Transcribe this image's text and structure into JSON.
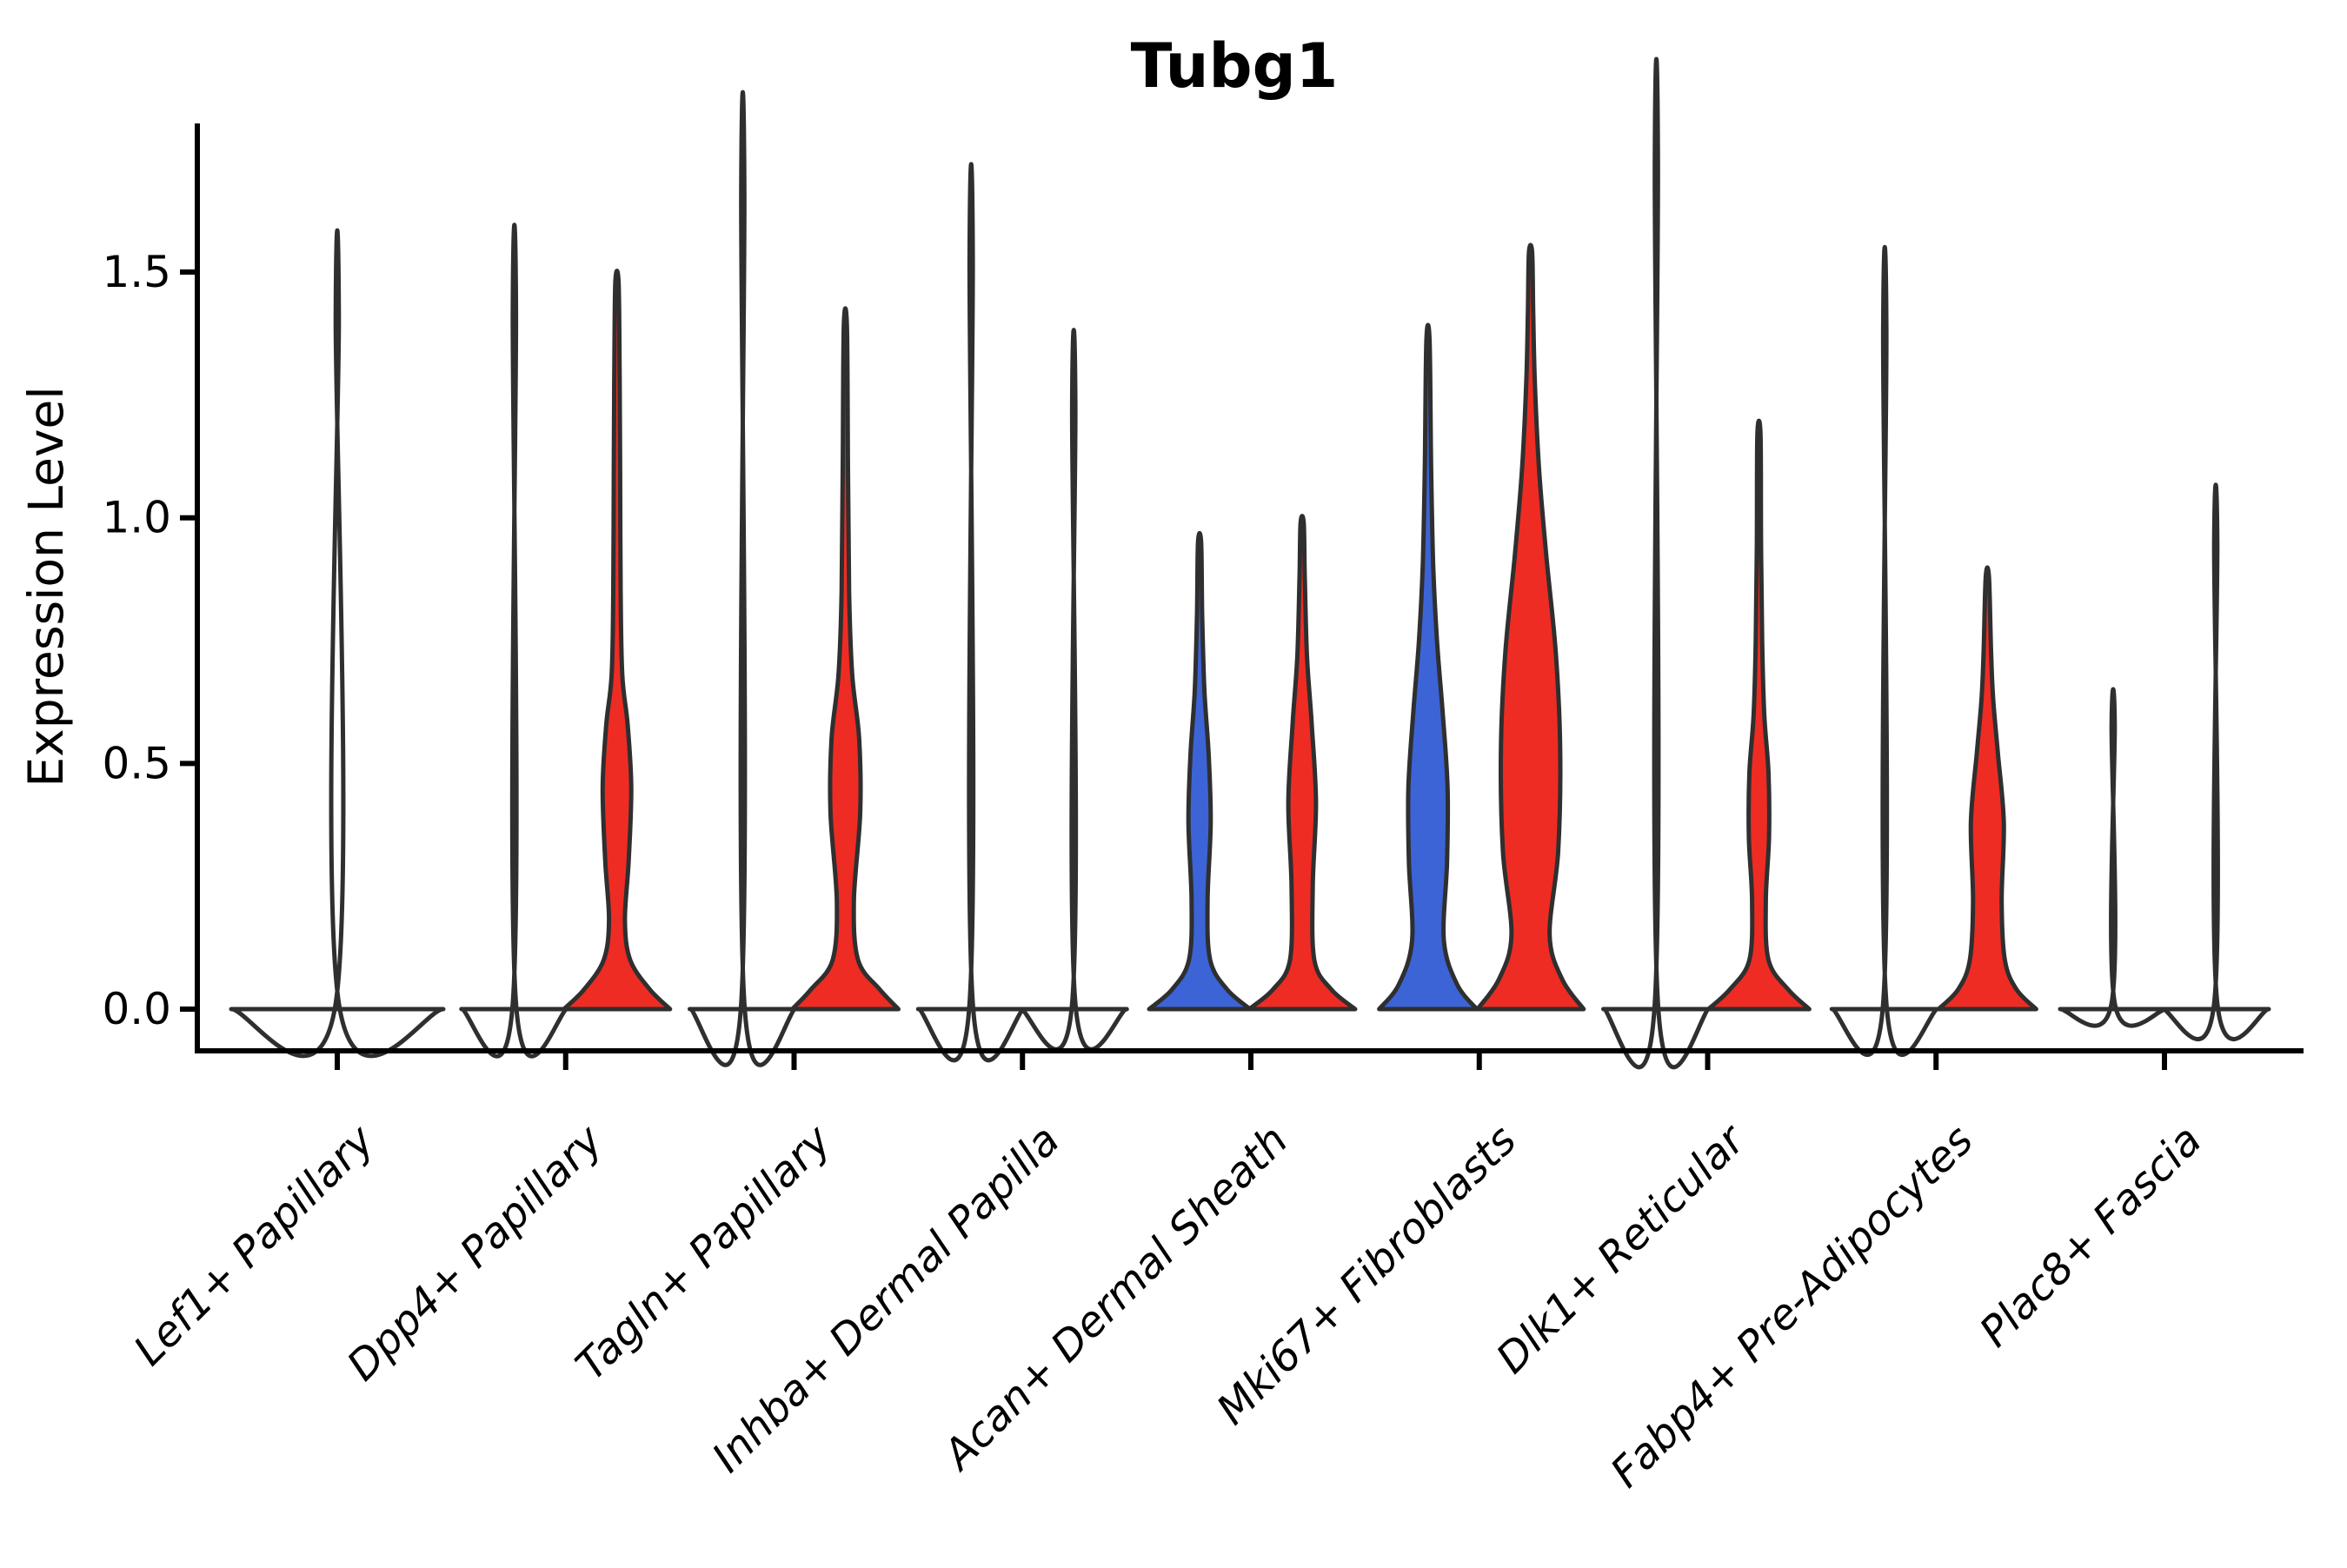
{
  "title": "Tubg1",
  "colors": {
    "red": "#ee2c24",
    "blue": "#3c64d7",
    "violin_outline": "#2f2f2f",
    "axis": "#000000",
    "background": "#ffffff"
  },
  "chart_data": {
    "type": "violin",
    "title": "Tubg1",
    "xlabel": "",
    "ylabel": "Expression Level",
    "ylim": [
      -0.085,
      1.8
    ],
    "yticks": [
      0.0,
      0.5,
      1.0,
      1.5
    ],
    "ytick_labels": [
      "0.0",
      "0.5",
      "1.0",
      "1.5"
    ],
    "grid": false,
    "legend": "none",
    "categories": [
      "Lef1+ Papillary",
      "Dpp4+ Papillary",
      "Tagln+ Papillary",
      "Inhba+ Dermal Papilla",
      "Acan+ Dermal Sheath",
      "Mki67+ Fibroblasts",
      "Dlk1+ Reticular",
      "Fabp4+ Pre-Adipocytes",
      "Plac8+ Fascia"
    ],
    "series": [
      {
        "category": "Lef1+ Papillary",
        "violins": [
          {
            "pos": "center",
            "fill": "none",
            "max": 1.41,
            "shape": "spike",
            "base": 2.0
          }
        ]
      },
      {
        "category": "Dpp4+ Papillary",
        "violins": [
          {
            "pos": "left",
            "fill": "none",
            "max": 1.42,
            "shape": "spike",
            "base": 1.0
          },
          {
            "pos": "right",
            "fill": "red",
            "max": 1.48,
            "shape": "density",
            "profile": [
              [
                0,
                1.0
              ],
              [
                0.04,
                0.62
              ],
              [
                0.1,
                0.25
              ],
              [
                0.18,
                0.15
              ],
              [
                0.3,
                0.22
              ],
              [
                0.45,
                0.27
              ],
              [
                0.58,
                0.2
              ],
              [
                0.68,
                0.1
              ],
              [
                0.85,
                0.07
              ],
              [
                1.1,
                0.06
              ],
              [
                1.3,
                0.05
              ],
              [
                1.48,
                0.03
              ]
            ]
          }
        ]
      },
      {
        "category": "Tagln+ Papillary",
        "violins": [
          {
            "pos": "left",
            "fill": "none",
            "max": 1.66,
            "shape": "spike",
            "base": 1.0
          },
          {
            "pos": "right",
            "fill": "red",
            "max": 1.39,
            "shape": "density",
            "profile": [
              [
                0,
                1.0
              ],
              [
                0.04,
                0.65
              ],
              [
                0.1,
                0.24
              ],
              [
                0.22,
                0.16
              ],
              [
                0.4,
                0.28
              ],
              [
                0.55,
                0.26
              ],
              [
                0.68,
                0.13
              ],
              [
                0.85,
                0.07
              ],
              [
                1.1,
                0.05
              ],
              [
                1.39,
                0.03
              ]
            ]
          }
        ]
      },
      {
        "category": "Inhba+ Dermal Papilla",
        "violins": [
          {
            "pos": "left",
            "fill": "none",
            "max": 1.53,
            "shape": "spike",
            "base": 1.0
          },
          {
            "pos": "right",
            "fill": "none",
            "max": 1.23,
            "shape": "spike",
            "base": 1.0
          }
        ]
      },
      {
        "category": "Acan+ Dermal Sheath",
        "violins": [
          {
            "pos": "left",
            "fill": "blue",
            "max": 0.95,
            "shape": "density",
            "profile": [
              [
                0,
                0.95
              ],
              [
                0.04,
                0.52
              ],
              [
                0.1,
                0.2
              ],
              [
                0.22,
                0.15
              ],
              [
                0.38,
                0.21
              ],
              [
                0.52,
                0.17
              ],
              [
                0.65,
                0.09
              ],
              [
                0.8,
                0.05
              ],
              [
                0.95,
                0.03
              ]
            ]
          },
          {
            "pos": "right",
            "fill": "red",
            "max": 0.99,
            "shape": "density",
            "profile": [
              [
                0,
                1.0
              ],
              [
                0.04,
                0.55
              ],
              [
                0.1,
                0.23
              ],
              [
                0.25,
                0.2
              ],
              [
                0.42,
                0.26
              ],
              [
                0.58,
                0.18
              ],
              [
                0.72,
                0.09
              ],
              [
                0.88,
                0.05
              ],
              [
                0.99,
                0.03
              ]
            ]
          }
        ]
      },
      {
        "category": "Mki67+ Fibroblasts",
        "violins": [
          {
            "pos": "left",
            "fill": "blue",
            "max": 1.36,
            "shape": "density",
            "profile": [
              [
                0,
                0.92
              ],
              [
                0.05,
                0.55
              ],
              [
                0.14,
                0.3
              ],
              [
                0.3,
                0.36
              ],
              [
                0.45,
                0.37
              ],
              [
                0.6,
                0.28
              ],
              [
                0.75,
                0.17
              ],
              [
                0.9,
                0.1
              ],
              [
                1.1,
                0.06
              ],
              [
                1.36,
                0.03
              ]
            ]
          },
          {
            "pos": "right",
            "fill": "red",
            "max": 1.54,
            "shape": "density",
            "profile": [
              [
                0,
                1.0
              ],
              [
                0.06,
                0.6
              ],
              [
                0.15,
                0.36
              ],
              [
                0.32,
                0.52
              ],
              [
                0.52,
                0.56
              ],
              [
                0.72,
                0.48
              ],
              [
                0.92,
                0.3
              ],
              [
                1.1,
                0.16
              ],
              [
                1.28,
                0.08
              ],
              [
                1.42,
                0.05
              ],
              [
                1.54,
                0.03
              ]
            ]
          }
        ]
      },
      {
        "category": "Dlk1+ Reticular",
        "violins": [
          {
            "pos": "left",
            "fill": "none",
            "max": 1.72,
            "shape": "spike",
            "base": 1.0
          },
          {
            "pos": "right",
            "fill": "red",
            "max": 1.17,
            "shape": "density",
            "profile": [
              [
                0,
                0.95
              ],
              [
                0.04,
                0.55
              ],
              [
                0.1,
                0.18
              ],
              [
                0.22,
                0.13
              ],
              [
                0.35,
                0.19
              ],
              [
                0.48,
                0.18
              ],
              [
                0.6,
                0.1
              ],
              [
                0.75,
                0.06
              ],
              [
                0.95,
                0.04
              ],
              [
                1.17,
                0.03
              ]
            ]
          }
        ]
      },
      {
        "category": "Fabp4+ Pre-Adipocytes",
        "violins": [
          {
            "pos": "left",
            "fill": "none",
            "max": 1.38,
            "shape": "spike",
            "base": 1.0
          },
          {
            "pos": "right",
            "fill": "red",
            "max": 0.88,
            "shape": "density",
            "profile": [
              [
                0,
                0.92
              ],
              [
                0.04,
                0.55
              ],
              [
                0.1,
                0.33
              ],
              [
                0.22,
                0.27
              ],
              [
                0.38,
                0.31
              ],
              [
                0.52,
                0.2
              ],
              [
                0.63,
                0.11
              ],
              [
                0.73,
                0.07
              ],
              [
                0.88,
                0.03
              ]
            ]
          }
        ]
      },
      {
        "category": "Plac8+ Fascia",
        "violins": [
          {
            "pos": "left",
            "fill": "none",
            "max": 0.58,
            "shape": "spike",
            "base": 1.0
          },
          {
            "pos": "right",
            "fill": "none",
            "max": 0.95,
            "shape": "spike",
            "base": 1.0
          }
        ]
      }
    ]
  }
}
